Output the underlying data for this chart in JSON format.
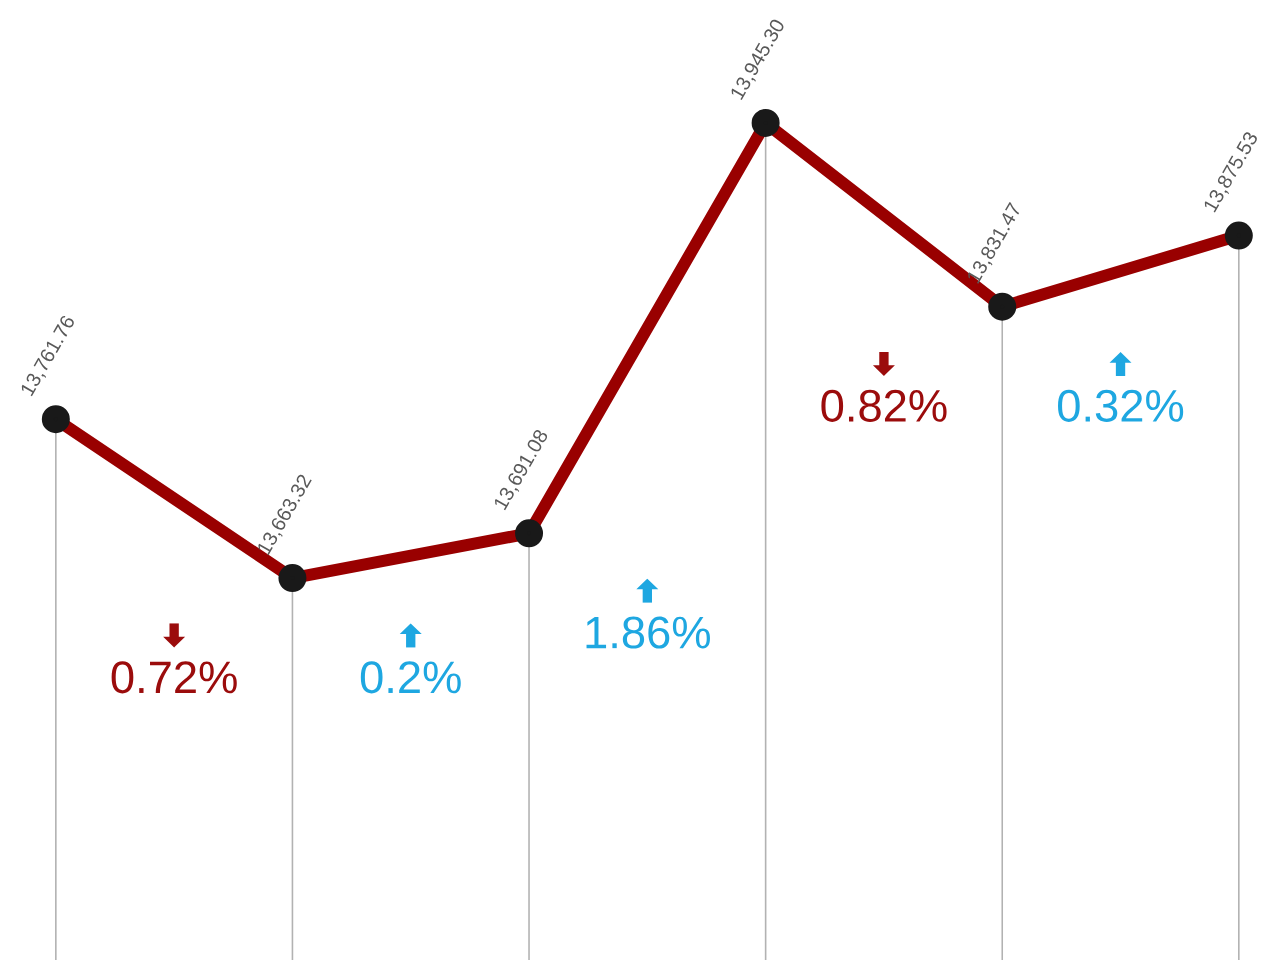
{
  "chart_data": {
    "type": "line",
    "categories": [
      null,
      null,
      null,
      null,
      null,
      null
    ],
    "series": [
      {
        "color": "#990000",
        "values": [
          13761.76,
          13663.32,
          13691.08,
          13945.3,
          13831.47,
          13875.53
        ],
        "value_labels": [
          "13,761.76",
          "13,663.32",
          "13,691.08",
          "13,945.30",
          "13,831.47",
          "13,875.53"
        ]
      }
    ],
    "marker": "circle",
    "grid": "x",
    "line_style": "solid",
    "annotations": [
      "0.72%",
      "0.2%",
      "1.86%",
      "0.82%",
      "0.32%"
    ]
  }
}
